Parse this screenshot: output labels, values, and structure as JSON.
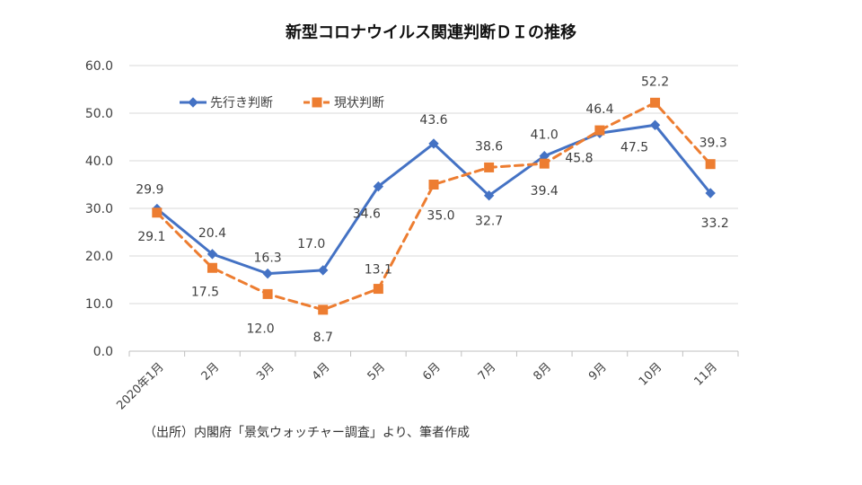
{
  "chart_data": {
    "type": "line",
    "title": "新型コロナウイルス関連判断ＤＩの推移",
    "xlabel": "",
    "ylabel": "",
    "ylim": [
      0,
      60
    ],
    "y_ticks": [
      "0.0",
      "10.0",
      "20.0",
      "30.0",
      "40.0",
      "50.0",
      "60.0"
    ],
    "categories": [
      "2020年1月",
      "2月",
      "3月",
      "4月",
      "5月",
      "6月",
      "7月",
      "8月",
      "9月",
      "10月",
      "11月"
    ],
    "series": [
      {
        "name": "先行き判断",
        "values": [
          29.9,
          20.4,
          16.3,
          17.0,
          34.6,
          43.6,
          32.7,
          41.0,
          45.8,
          47.5,
          33.2
        ],
        "labels": [
          "29.9",
          "20.4",
          "16.3",
          "17.0",
          "34.6",
          "43.6",
          "32.7",
          "41.0",
          "45.8",
          "47.5",
          "33.2"
        ],
        "color": "#4472C4",
        "marker": "diamond",
        "line_style": "solid"
      },
      {
        "name": "現状判断",
        "values": [
          29.1,
          17.5,
          12.0,
          8.7,
          13.1,
          35.0,
          38.6,
          39.4,
          46.4,
          52.2,
          39.3
        ],
        "labels": [
          "29.1",
          "17.5",
          "12.0",
          "8.7",
          "13.1",
          "35.0",
          "38.6",
          "39.4",
          "46.4",
          "52.2",
          "39.3"
        ],
        "color": "#ED7D31",
        "marker": "square",
        "line_style": "dashed"
      }
    ],
    "legend_position": "top-left",
    "grid": true
  },
  "source_note": "（出所）内閣府「景気ウォッチャー調査」より、筆者作成",
  "colors": {
    "grid": "#d9d9d9",
    "axis": "#bfbfbf",
    "text": "#404040"
  }
}
